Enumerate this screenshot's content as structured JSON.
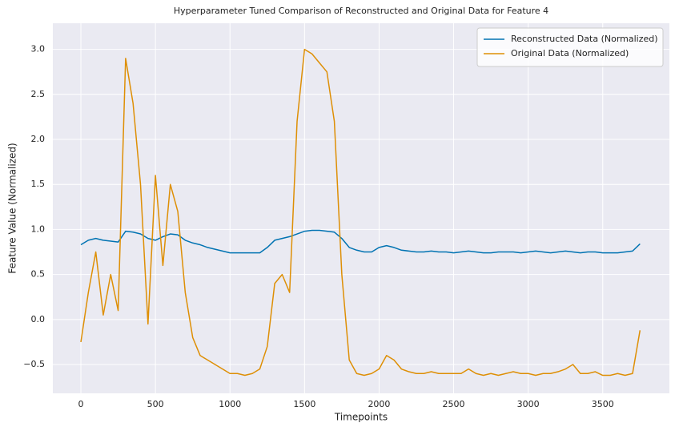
{
  "chart_data": {
    "type": "line",
    "title": "Hyperparameter Tuned Comparison of Reconstructed and Original Data for Feature 4",
    "x_label": "Timepoints",
    "y_label": "Feature Value (Normalized)",
    "x": [
      0,
      50,
      100,
      150,
      200,
      250,
      300,
      350,
      400,
      450,
      500,
      550,
      600,
      650,
      700,
      750,
      800,
      850,
      900,
      950,
      1000,
      1050,
      1100,
      1150,
      1200,
      1250,
      1300,
      1350,
      1400,
      1450,
      1500,
      1550,
      1600,
      1650,
      1700,
      1750,
      1800,
      1850,
      1900,
      1950,
      2000,
      2050,
      2100,
      2150,
      2200,
      2250,
      2300,
      2350,
      2400,
      2450,
      2500,
      2550,
      2600,
      2650,
      2700,
      2750,
      2800,
      2850,
      2900,
      2950,
      3000,
      3050,
      3100,
      3150,
      3200,
      3250,
      3300,
      3350,
      3400,
      3450,
      3500,
      3550,
      3600,
      3650,
      3700,
      3750
    ],
    "series": [
      {
        "name": "Reconstructed Data (Normalized)",
        "color": "#0173b2",
        "values": [
          0.83,
          0.88,
          0.9,
          0.88,
          0.87,
          0.86,
          0.98,
          0.97,
          0.95,
          0.9,
          0.88,
          0.92,
          0.95,
          0.94,
          0.88,
          0.85,
          0.83,
          0.8,
          0.78,
          0.76,
          0.74,
          0.74,
          0.74,
          0.74,
          0.74,
          0.8,
          0.88,
          0.9,
          0.92,
          0.95,
          0.98,
          0.99,
          0.99,
          0.98,
          0.97,
          0.9,
          0.8,
          0.77,
          0.75,
          0.75,
          0.8,
          0.82,
          0.8,
          0.77,
          0.76,
          0.75,
          0.75,
          0.76,
          0.75,
          0.75,
          0.74,
          0.75,
          0.76,
          0.75,
          0.74,
          0.74,
          0.75,
          0.75,
          0.75,
          0.74,
          0.75,
          0.76,
          0.75,
          0.74,
          0.75,
          0.76,
          0.75,
          0.74,
          0.75,
          0.75,
          0.74,
          0.74,
          0.74,
          0.75,
          0.76,
          0.84
        ]
      },
      {
        "name": "Original Data (Normalized)",
        "color": "#de8f05",
        "values": [
          -0.25,
          0.3,
          0.75,
          0.05,
          0.5,
          0.1,
          2.9,
          2.4,
          1.5,
          -0.05,
          1.6,
          0.6,
          1.5,
          1.2,
          0.3,
          -0.2,
          -0.4,
          -0.45,
          -0.5,
          -0.55,
          -0.6,
          -0.6,
          -0.62,
          -0.6,
          -0.55,
          -0.3,
          0.4,
          0.5,
          0.3,
          2.2,
          3.0,
          2.95,
          2.85,
          2.75,
          2.2,
          0.5,
          -0.45,
          -0.6,
          -0.62,
          -0.6,
          -0.55,
          -0.4,
          -0.45,
          -0.55,
          -0.58,
          -0.6,
          -0.6,
          -0.58,
          -0.6,
          -0.6,
          -0.6,
          -0.6,
          -0.55,
          -0.6,
          -0.62,
          -0.6,
          -0.62,
          -0.6,
          -0.58,
          -0.6,
          -0.6,
          -0.62,
          -0.6,
          -0.6,
          -0.58,
          -0.55,
          -0.5,
          -0.6,
          -0.6,
          -0.58,
          -0.62,
          -0.62,
          -0.6,
          -0.62,
          -0.6,
          -0.12
        ]
      }
    ],
    "xlim": [
      -188,
      3947
    ],
    "ylim": [
      -0.82,
      3.29
    ],
    "xticks": [
      0,
      500,
      1000,
      1500,
      2000,
      2500,
      3000,
      3500
    ],
    "yticks": [
      {
        "value": -0.5,
        "label": "−0.5"
      },
      {
        "value": 0,
        "label": "0.0"
      },
      0.5,
      {
        "value": 1,
        "label": "1.0"
      },
      1.5,
      {
        "value": 2,
        "label": "2.0"
      },
      2.5,
      {
        "value": 3,
        "label": "3.0"
      }
    ],
    "grid": true,
    "legend": "upper right"
  }
}
